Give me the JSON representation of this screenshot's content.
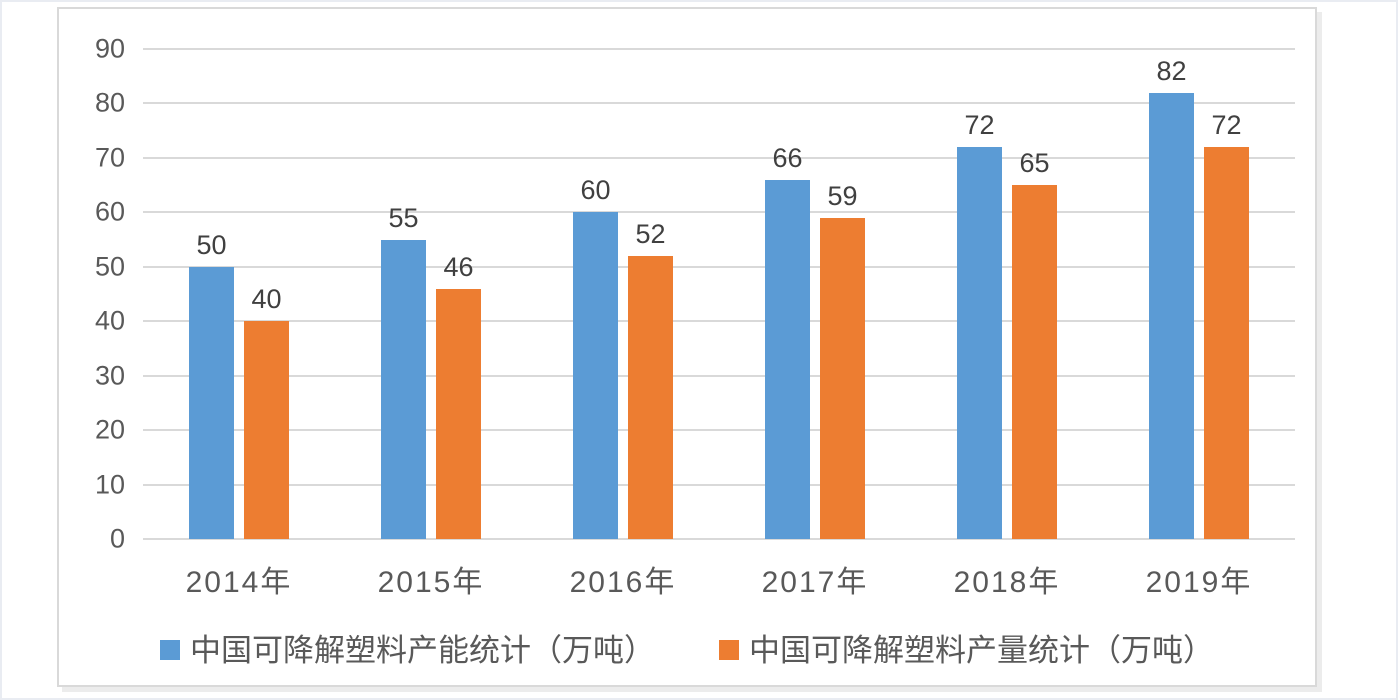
{
  "chart_data": {
    "type": "bar",
    "categories": [
      "2014年",
      "2015年",
      "2016年",
      "2017年",
      "2018年",
      "2019年"
    ],
    "series": [
      {
        "key": "capacity",
        "name": "中国可降解塑料产能统计（万吨）",
        "values": [
          50,
          55,
          60,
          66,
          72,
          82
        ],
        "color": "#5B9BD5"
      },
      {
        "key": "output",
        "name": "中国可降解塑料产量统计（万吨）",
        "values": [
          40,
          46,
          52,
          59,
          65,
          72
        ],
        "color": "#ED7D31"
      }
    ],
    "title": "",
    "xlabel": "",
    "ylabel": "",
    "ylim": [
      0,
      90
    ],
    "yticks": [
      0,
      10,
      20,
      30,
      40,
      50,
      60,
      70,
      80,
      90
    ],
    "grid": true,
    "data_labels": true,
    "legend_position": "bottom",
    "colors": {
      "grid": "#D9D9D9",
      "frame_border": "#D9D9D9",
      "tick_text": "#595959",
      "data_label_text": "#404040",
      "background": "#FFFFFF"
    }
  }
}
